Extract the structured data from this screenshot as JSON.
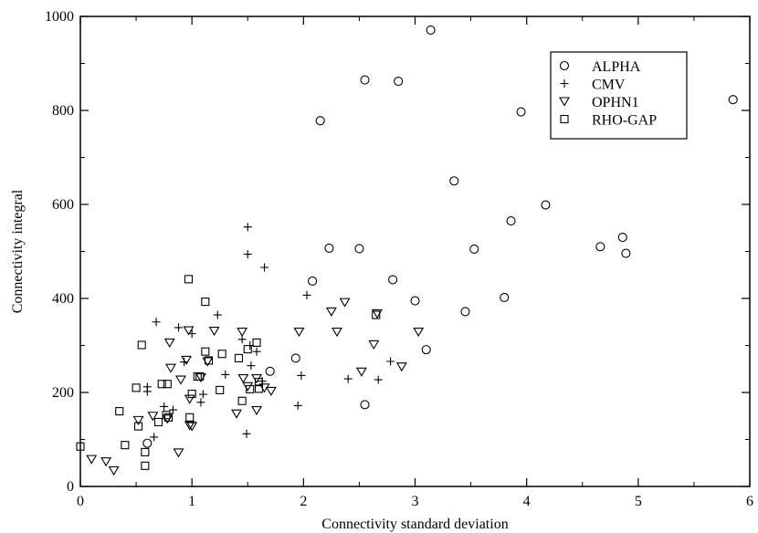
{
  "chart_data": {
    "type": "scatter",
    "title": "",
    "xlabel": "Connectivity standard deviation",
    "ylabel": "Connectivity integral",
    "xlim": [
      0,
      6
    ],
    "ylim": [
      0,
      1000
    ],
    "xticks": [
      0,
      1,
      2,
      3,
      4,
      5,
      6
    ],
    "yticks": [
      0,
      200,
      400,
      600,
      800,
      1000
    ],
    "grid": false,
    "legend_position": "top-right",
    "series": [
      {
        "name": "ALPHA",
        "marker": "circle",
        "color": "#000000",
        "points": [
          [
            0.6,
            92
          ],
          [
            1.7,
            245
          ],
          [
            1.93,
            273
          ],
          [
            2.08,
            437
          ],
          [
            2.15,
            778
          ],
          [
            2.23,
            507
          ],
          [
            2.5,
            506
          ],
          [
            2.55,
            174
          ],
          [
            2.55,
            865
          ],
          [
            2.8,
            440
          ],
          [
            2.85,
            862
          ],
          [
            3.0,
            395
          ],
          [
            3.1,
            291
          ],
          [
            3.14,
            971
          ],
          [
            3.35,
            650
          ],
          [
            3.45,
            372
          ],
          [
            3.53,
            505
          ],
          [
            3.8,
            402
          ],
          [
            3.86,
            565
          ],
          [
            3.95,
            797
          ],
          [
            4.17,
            599
          ],
          [
            4.66,
            510
          ],
          [
            4.86,
            530
          ],
          [
            4.89,
            496
          ],
          [
            5.85,
            823
          ]
        ]
      },
      {
        "name": "CMV",
        "marker": "plus",
        "color": "#000000",
        "points": [
          [
            0.6,
            202
          ],
          [
            0.6,
            212
          ],
          [
            0.66,
            105
          ],
          [
            0.68,
            350
          ],
          [
            0.75,
            170
          ],
          [
            0.83,
            163
          ],
          [
            0.88,
            338
          ],
          [
            0.93,
            265
          ],
          [
            1.0,
            325
          ],
          [
            1.08,
            179
          ],
          [
            1.1,
            196
          ],
          [
            1.23,
            365
          ],
          [
            1.3,
            238
          ],
          [
            1.45,
            313
          ],
          [
            1.49,
            112
          ],
          [
            1.5,
            552
          ],
          [
            1.5,
            494
          ],
          [
            1.52,
            300
          ],
          [
            1.53,
            257
          ],
          [
            1.58,
            287
          ],
          [
            1.63,
            224
          ],
          [
            1.65,
            466
          ],
          [
            1.95,
            172
          ],
          [
            1.98,
            236
          ],
          [
            2.03,
            407
          ],
          [
            2.4,
            229
          ],
          [
            2.67,
            227
          ],
          [
            2.78,
            266
          ]
        ]
      },
      {
        "name": "OPHN1",
        "marker": "triangle-down",
        "color": "#000000",
        "points": [
          [
            0.1,
            58
          ],
          [
            0.23,
            53
          ],
          [
            0.3,
            34
          ],
          [
            0.52,
            141
          ],
          [
            0.65,
            150
          ],
          [
            0.78,
            144
          ],
          [
            0.8,
            306
          ],
          [
            0.81,
            252
          ],
          [
            0.88,
            72
          ],
          [
            0.9,
            227
          ],
          [
            0.95,
            269
          ],
          [
            0.97,
            332
          ],
          [
            0.98,
            130
          ],
          [
            0.98,
            186
          ],
          [
            1.0,
            128
          ],
          [
            1.08,
            232
          ],
          [
            1.14,
            266
          ],
          [
            1.2,
            331
          ],
          [
            1.4,
            155
          ],
          [
            1.45,
            329
          ],
          [
            1.46,
            230
          ],
          [
            1.5,
            213
          ],
          [
            1.58,
            162
          ],
          [
            1.58,
            230
          ],
          [
            1.65,
            210
          ],
          [
            1.71,
            203
          ],
          [
            1.96,
            329
          ],
          [
            2.25,
            372
          ],
          [
            2.3,
            329
          ],
          [
            2.37,
            392
          ],
          [
            2.52,
            244
          ],
          [
            2.63,
            302
          ],
          [
            2.66,
            368
          ],
          [
            2.88,
            255
          ],
          [
            3.03,
            329
          ]
        ]
      },
      {
        "name": "RHO-GAP",
        "marker": "square",
        "color": "#000000",
        "points": [
          [
            0.0,
            85
          ],
          [
            0.35,
            160
          ],
          [
            0.4,
            88
          ],
          [
            0.5,
            210
          ],
          [
            0.52,
            128
          ],
          [
            0.55,
            301
          ],
          [
            0.58,
            73
          ],
          [
            0.58,
            44
          ],
          [
            0.7,
            137
          ],
          [
            0.73,
            218
          ],
          [
            0.77,
            152
          ],
          [
            0.78,
            218
          ],
          [
            0.79,
            147
          ],
          [
            0.97,
            441
          ],
          [
            0.98,
            147
          ],
          [
            1.0,
            197
          ],
          [
            1.05,
            234
          ],
          [
            1.07,
            234
          ],
          [
            1.12,
            393
          ],
          [
            1.12,
            287
          ],
          [
            1.15,
            268
          ],
          [
            1.25,
            205
          ],
          [
            1.27,
            282
          ],
          [
            1.42,
            273
          ],
          [
            1.45,
            182
          ],
          [
            1.5,
            292
          ],
          [
            1.52,
            207
          ],
          [
            1.58,
            306
          ],
          [
            1.6,
            208
          ],
          [
            1.6,
            222
          ],
          [
            2.65,
            365
          ]
        ]
      }
    ]
  }
}
